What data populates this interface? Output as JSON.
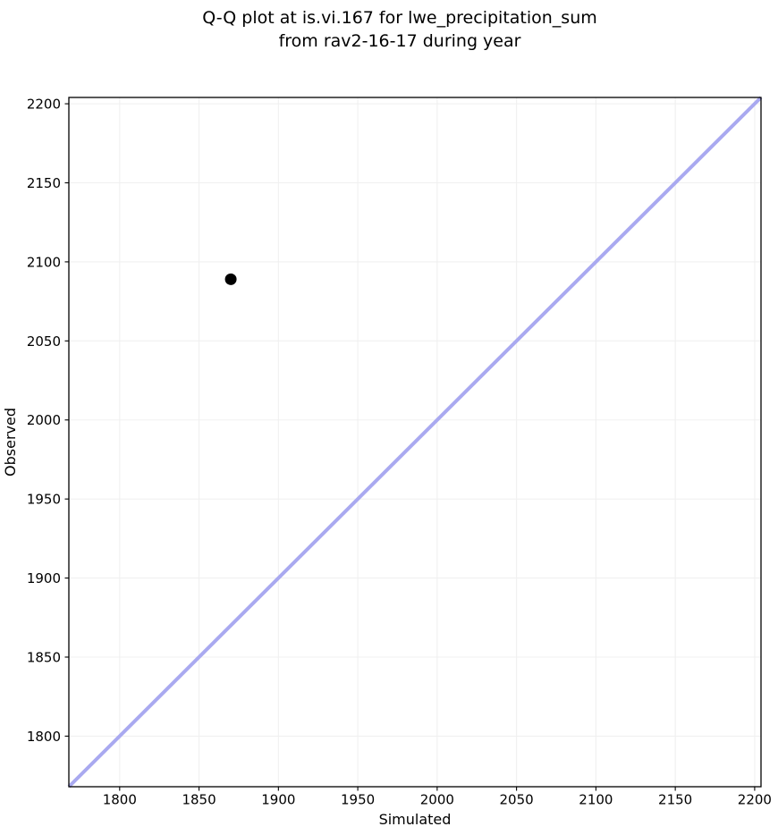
{
  "title": {
    "line1": "Q-Q plot at is.vi.167 for lwe_precipitation_sum",
    "line2": "from rav2-16-17 during year"
  },
  "chart_data": {
    "type": "scatter",
    "title": "Q-Q plot at is.vi.167 for lwe_precipitation_sum\nfrom rav2-16-17 during year",
    "xlabel": "Simulated",
    "ylabel": "Observed",
    "xlim": [
      1768,
      2204
    ],
    "ylim": [
      1768,
      2204
    ],
    "xticks": [
      1800,
      1850,
      1900,
      1950,
      2000,
      2050,
      2100,
      2150,
      2200
    ],
    "yticks": [
      1800,
      1850,
      1900,
      1950,
      2000,
      2050,
      2100,
      2150,
      2200
    ],
    "grid": true,
    "legend": false,
    "points": [
      {
        "x": 1870,
        "y": 2089
      }
    ],
    "identity_line": {
      "x1": 1768,
      "y1": 1768,
      "x2": 2204,
      "y2": 2204
    },
    "colors": {
      "identity_line": "#a9a9f0",
      "point": "#000000",
      "grid": "#f0f0f0",
      "spine": "#000000",
      "tick": "#000000",
      "background": "#ffffff"
    }
  }
}
